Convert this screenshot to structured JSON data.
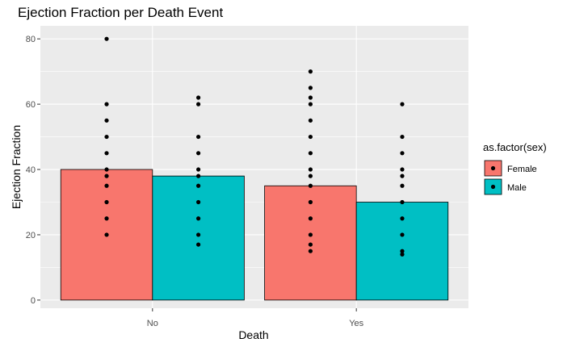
{
  "chart_data": {
    "type": "bar",
    "title": "Ejection Fraction per Death Event",
    "xlabel": "Death",
    "ylabel": "Ejection Fraction",
    "categories": [
      "No",
      "Yes"
    ],
    "ylim": [
      -2.5,
      84
    ],
    "yticks": [
      0,
      20,
      40,
      60,
      80
    ],
    "grid": true,
    "legend_position": "right",
    "legend_title": "as.factor(sex)",
    "series": [
      {
        "name": "Female",
        "color": "#F8766D",
        "values": [
          40,
          35
        ]
      },
      {
        "name": "Male",
        "color": "#00BFC4",
        "values": [
          38,
          30
        ]
      }
    ],
    "points": [
      {
        "category": "No",
        "series": "Female",
        "y": [
          80,
          60,
          55,
          50,
          45,
          40,
          38,
          35,
          30,
          25,
          20
        ]
      },
      {
        "category": "No",
        "series": "Male",
        "y": [
          62,
          60,
          50,
          45,
          40,
          38,
          35,
          30,
          25,
          20,
          17
        ]
      },
      {
        "category": "Yes",
        "series": "Female",
        "y": [
          70,
          65,
          62,
          60,
          55,
          50,
          45,
          40,
          38,
          35,
          30,
          25,
          20,
          17,
          15
        ]
      },
      {
        "category": "Yes",
        "series": "Male",
        "y": [
          60,
          50,
          45,
          40,
          38,
          35,
          30,
          25,
          20,
          15,
          14
        ]
      }
    ]
  }
}
